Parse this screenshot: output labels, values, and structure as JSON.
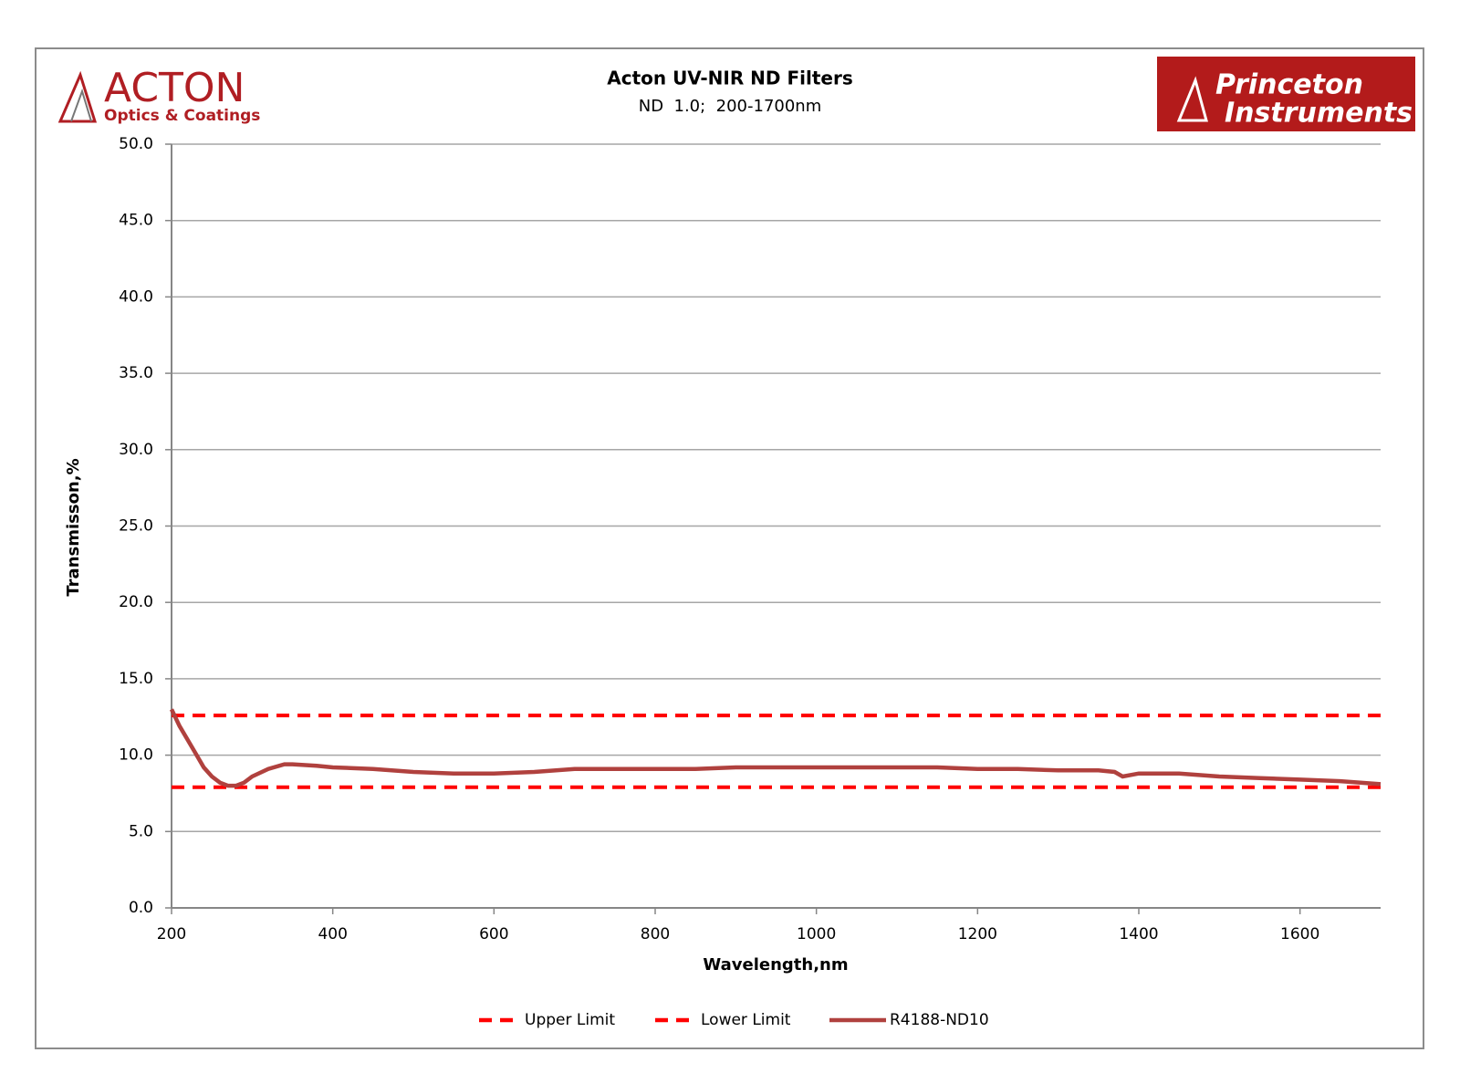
{
  "logos": {
    "left": {
      "name": "ACTON",
      "tagline": "Optics & Coatings"
    },
    "right": {
      "line1": "Princeton",
      "line2": "Instruments"
    }
  },
  "chart_data": {
    "type": "line",
    "title": "Acton UV-NIR ND Filters",
    "subtitle": "ND  1.0;  200-1700nm",
    "x_label": "Wavelength,nm",
    "y_label": "Transmisson,%",
    "xlim": [
      200,
      1700
    ],
    "xticks": [
      200,
      400,
      600,
      800,
      1000,
      1200,
      1400,
      1600
    ],
    "ylim": [
      0,
      50
    ],
    "yticks": [
      {
        "value": 0,
        "label": "0.0"
      },
      {
        "value": 5,
        "label": "5.0"
      },
      {
        "value": 10,
        "label": "10.0"
      },
      {
        "value": 15,
        "label": "15.0"
      },
      {
        "value": 20,
        "label": "20.0"
      },
      {
        "value": 25,
        "label": "25.0"
      },
      {
        "value": 30,
        "label": "30.0"
      },
      {
        "value": 35,
        "label": "35.0"
      },
      {
        "value": 40,
        "label": "40.0"
      },
      {
        "value": 45,
        "label": "45.0"
      },
      {
        "value": 50,
        "label": "50.0"
      }
    ],
    "grid": true,
    "legend": "bottom",
    "series": [
      {
        "name": "Upper Limit",
        "color": "#ff0000",
        "dashed": true,
        "x": [
          200,
          1700
        ],
        "values": [
          12.6,
          12.6
        ]
      },
      {
        "name": "Lower Limit",
        "color": "#ff0000",
        "dashed": true,
        "x": [
          200,
          1700
        ],
        "values": [
          7.9,
          7.9
        ]
      },
      {
        "name": "R4188-ND10",
        "color": "#b0413e",
        "dashed": false,
        "x": [
          200,
          210,
          220,
          230,
          240,
          250,
          260,
          270,
          280,
          290,
          300,
          320,
          340,
          350,
          380,
          400,
          450,
          500,
          550,
          600,
          650,
          700,
          750,
          800,
          850,
          900,
          950,
          1000,
          1050,
          1100,
          1150,
          1200,
          1250,
          1300,
          1350,
          1370,
          1380,
          1400,
          1450,
          1500,
          1550,
          1600,
          1650,
          1700
        ],
        "values": [
          13.0,
          11.9,
          11.0,
          10.1,
          9.2,
          8.6,
          8.2,
          8.0,
          8.0,
          8.2,
          8.6,
          9.1,
          9.4,
          9.4,
          9.3,
          9.2,
          9.1,
          8.9,
          8.8,
          8.8,
          8.9,
          9.1,
          9.1,
          9.1,
          9.1,
          9.2,
          9.2,
          9.2,
          9.2,
          9.2,
          9.2,
          9.1,
          9.1,
          9.0,
          9.0,
          8.9,
          8.6,
          8.8,
          8.8,
          8.6,
          8.5,
          8.4,
          8.3,
          8.1
        ]
      }
    ]
  }
}
